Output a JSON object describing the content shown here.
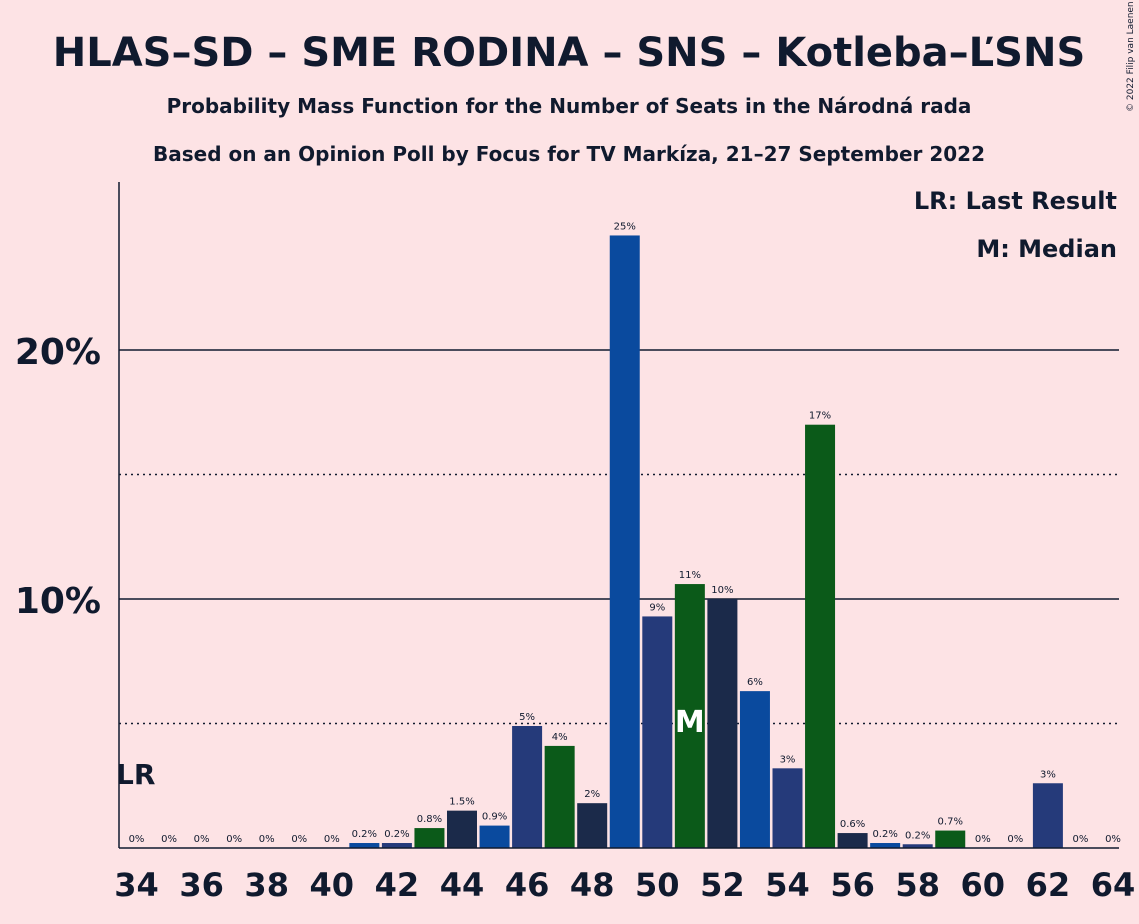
{
  "title": "HLAS–SD – SME RODINA – SNS – Kotleba–ĽSNS",
  "subtitle": "Probability Mass Function for the Number of Seats in the Národná rada",
  "subtitle2": "Based on an Opinion Poll by Focus for TV Markíza, 21–27 September 2022",
  "copyright": "© 2022 Filip van Laenen",
  "legend": {
    "last_result": "LR: Last Result",
    "median": "M: Median"
  },
  "markers": {
    "last_result_label": "LR",
    "last_result_seat": 34,
    "median_label": "M",
    "median_seat": 51
  },
  "colors": {
    "background": "#fde3e5",
    "navy": "#1b2a4a",
    "blue": "#0a4a9e",
    "indigo": "#253a7a",
    "green": "#0b5a19",
    "text": "#101a2e"
  },
  "chart_data": {
    "type": "bar",
    "xlabel": "",
    "ylabel": "",
    "ylim": [
      0,
      26.5
    ],
    "xlim": [
      33.5,
      64.5
    ],
    "ytick_values": [
      10,
      20
    ],
    "ytick_labels": [
      "10%",
      "20%"
    ],
    "dotted_gridlines": [
      5,
      15
    ],
    "x": [
      34,
      35,
      36,
      37,
      38,
      39,
      40,
      41,
      42,
      43,
      44,
      45,
      46,
      47,
      48,
      49,
      50,
      51,
      52,
      53,
      54,
      55,
      56,
      57,
      58,
      59,
      60,
      61,
      62,
      63,
      64
    ],
    "values": [
      0,
      0,
      0,
      0,
      0,
      0,
      0,
      0.2,
      0.2,
      0.8,
      1.5,
      0.9,
      4.9,
      4.1,
      1.8,
      24.6,
      9.3,
      10.6,
      10.0,
      6.3,
      3.2,
      17.0,
      0.6,
      0.2,
      0.15,
      0.7,
      0,
      0,
      2.6,
      0,
      0
    ],
    "labels": [
      "0%",
      "0%",
      "0%",
      "0%",
      "0%",
      "0%",
      "0%",
      "0.2%",
      "0.2%",
      "0.8%",
      "1.5%",
      "0.9%",
      "5%",
      "4%",
      "2%",
      "25%",
      "9%",
      "11%",
      "10%",
      "6%",
      "3%",
      "17%",
      "0.6%",
      "0.2%",
      "0.2%",
      "0.7%",
      "0%",
      "0%",
      "3%",
      "0%",
      "0%"
    ],
    "bar_colors": [
      "navy",
      "blue",
      "indigo",
      "green",
      "navy",
      "blue",
      "indigo",
      "blue",
      "indigo",
      "green",
      "navy",
      "blue",
      "indigo",
      "green",
      "navy",
      "blue",
      "indigo",
      "green",
      "navy",
      "blue",
      "indigo",
      "green",
      "navy",
      "blue",
      "indigo",
      "green",
      "navy",
      "blue",
      "indigo",
      "green",
      "navy"
    ],
    "xtick_values": [
      34,
      36,
      38,
      40,
      42,
      44,
      46,
      48,
      50,
      52,
      54,
      56,
      58,
      60,
      62,
      64
    ],
    "xtick_labels": [
      "34",
      "36",
      "38",
      "40",
      "42",
      "44",
      "46",
      "48",
      "50",
      "52",
      "54",
      "56",
      "58",
      "60",
      "62",
      "64"
    ]
  }
}
